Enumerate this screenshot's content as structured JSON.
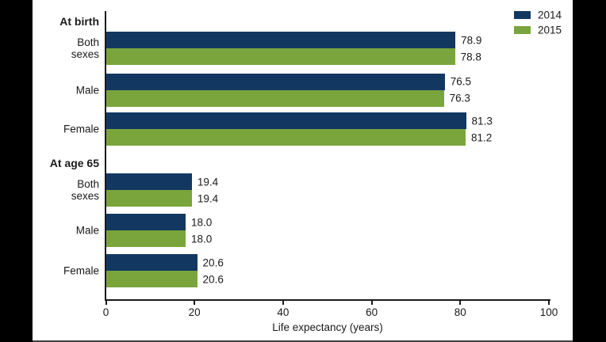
{
  "chart_data": {
    "type": "bar",
    "orientation": "horizontal",
    "title": "",
    "xlabel": "Life expectancy (years)",
    "ylabel": "",
    "xlim": [
      0,
      100
    ],
    "xticks": [
      0,
      20,
      40,
      60,
      80,
      100
    ],
    "grid": false,
    "legend_position": "top-right",
    "value_label_decimals": 1,
    "series": [
      {
        "name": "2014",
        "color": "#123862"
      },
      {
        "name": "2015",
        "color": "#7aa53c"
      }
    ],
    "groups": [
      {
        "header": "At birth",
        "rows": [
          {
            "category": "Both sexes",
            "values": [
              78.9,
              78.8
            ]
          },
          {
            "category": "Male",
            "values": [
              76.5,
              76.3
            ]
          },
          {
            "category": "Female",
            "values": [
              81.3,
              81.2
            ]
          }
        ]
      },
      {
        "header": "At age 65",
        "rows": [
          {
            "category": "Both sexes",
            "values": [
              19.4,
              19.4
            ]
          },
          {
            "category": "Male",
            "values": [
              18.0,
              18.0
            ]
          },
          {
            "category": "Female",
            "values": [
              20.6,
              20.6
            ]
          }
        ]
      }
    ]
  },
  "colors": {
    "background": "#ffffff",
    "letterbox": "#000000",
    "axis": "#1a1a1a",
    "text": "#1a1a1a",
    "bottom_edge": "#3f3f3f"
  }
}
